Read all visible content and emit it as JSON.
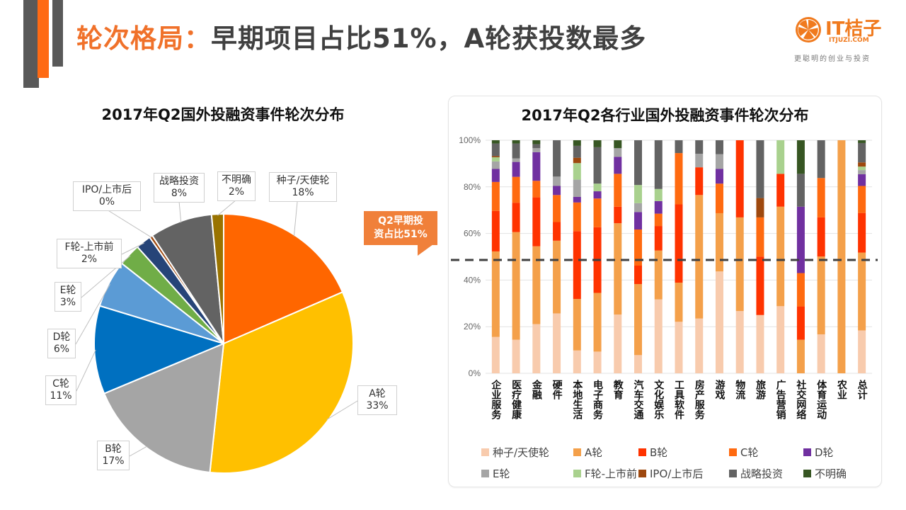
{
  "header": {
    "title_highlight": "轮次格局：",
    "title_rest": "早期项目占比51%，A轮获投数最多"
  },
  "logo": {
    "name": "IT桔子",
    "url_text": "ITJUZI.COM",
    "slogan": "更聪明的创业与投资",
    "brand_color": "#F07A1E"
  },
  "callout": {
    "line1": "Q2早期投",
    "line2": "资占比51%",
    "color": "#F0803A"
  },
  "chart_data": [
    {
      "type": "pie",
      "title": "2017年Q2国外投融资事件轮次分布",
      "slices": [
        {
          "label": "种子/天使轮",
          "value_label": "18%",
          "value": 18.5,
          "color": "#FF6600"
        },
        {
          "label": "A轮",
          "value_label": "33%",
          "value": 33.2,
          "color": "#FFC000"
        },
        {
          "label": "B轮",
          "value_label": "17%",
          "value": 17.0,
          "color": "#A5A5A5"
        },
        {
          "label": "C轮",
          "value_label": "11%",
          "value": 11.0,
          "color": "#0070C0"
        },
        {
          "label": "D轮",
          "value_label": "6%",
          "value": 5.9,
          "color": "#5B9BD5"
        },
        {
          "label": "E轮",
          "value_label": "3%",
          "value": 2.8,
          "color": "#70AD47"
        },
        {
          "label": "F轮-上市前",
          "value_label": "2%",
          "value": 1.9,
          "color": "#264478"
        },
        {
          "label": "IPO/上市后",
          "value_label": "0%",
          "value": 0.4,
          "color": "#9E480E"
        },
        {
          "label": "战略投资",
          "value_label": "8%",
          "value": 7.8,
          "color": "#636363"
        },
        {
          "label": "不明确",
          "value_label": "2%",
          "value": 1.5,
          "color": "#997300"
        }
      ],
      "start_angle": "12 o'clock",
      "direction": "clockwise"
    },
    {
      "type": "bar",
      "stacked": "percent",
      "title": "2017年Q2各行业国外投融资事件轮次分布",
      "categories": [
        "企业服务",
        "医疗健康",
        "金融",
        "硬件",
        "本地生活",
        "电子商务",
        "教育",
        "汽车交通",
        "文化娱乐",
        "工具软件",
        "房产服务",
        "游戏",
        "物流",
        "旅游",
        "广告营销",
        "社交网络",
        "体育运动",
        "农业",
        "总计"
      ],
      "yticks": [
        "0%",
        "20%",
        "40%",
        "60%",
        "80%",
        "100%"
      ],
      "ylim": [
        0,
        100
      ],
      "grid": true,
      "reference_line": {
        "value": 48.5,
        "style": "dashed",
        "note": "Q2早期投资占比51%"
      },
      "legend_position": "bottom",
      "series": [
        {
          "name": "种子/天使轮",
          "color": "#F8CBAD",
          "values": [
            15.6,
            14.4,
            21.1,
            25.7,
            9.8,
            9.3,
            25.2,
            7.8,
            31.7,
            22.1,
            23.5,
            43.7,
            26.7,
            25.0,
            28.8,
            0,
            16.7,
            0,
            18.4
          ]
        },
        {
          "name": "A轮",
          "color": "#F4A04A",
          "values": [
            36.7,
            46.2,
            33.4,
            31.2,
            22.1,
            25.2,
            39.2,
            30.5,
            21.0,
            16.8,
            53.0,
            25.0,
            40.2,
            0,
            42.7,
            14.4,
            33.4,
            100,
            33.4
          ]
        },
        {
          "name": "B轮",
          "color": "#FF3300",
          "values": [
            17.4,
            12.6,
            21.0,
            8.0,
            29.1,
            28.2,
            7.1,
            7.9,
            10.5,
            33.6,
            11.9,
            0,
            33.1,
            25.1,
            14.1,
            14.3,
            16.8,
            0,
            17.0
          ]
        },
        {
          "name": "C轮",
          "color": "#FF6A10",
          "values": [
            12.4,
            11.1,
            7.1,
            11.6,
            12.3,
            12.3,
            14.1,
            15.5,
            5.3,
            22.0,
            0,
            12.7,
            0,
            16.8,
            0,
            14.3,
            16.9,
            0,
            11.6
          ]
        },
        {
          "name": "D轮",
          "color": "#7030A0",
          "values": [
            5.6,
            6.4,
            12.3,
            3.9,
            2.4,
            3.1,
            7.3,
            7.5,
            5.4,
            0,
            0,
            6.3,
            0,
            0,
            0,
            28.5,
            0,
            0,
            5.0
          ]
        },
        {
          "name": "E轮",
          "color": "#A5A5A5",
          "values": [
            3.2,
            1.5,
            1.7,
            4.0,
            7.4,
            0,
            3.7,
            3.8,
            0,
            0,
            5.8,
            6.3,
            0,
            0,
            0,
            0,
            0,
            0,
            1.8
          ]
        },
        {
          "name": "F轮-上市前",
          "color": "#A9D18E",
          "values": [
            1.8,
            0,
            0,
            0,
            7.1,
            3.3,
            0,
            7.8,
            5.2,
            0,
            0,
            0,
            0,
            0,
            14.4,
            0,
            0,
            0,
            1.5
          ]
        },
        {
          "name": "IPO/上市后",
          "color": "#9E480E",
          "values": [
            0.5,
            0,
            0,
            0,
            2.3,
            0,
            0,
            0,
            0,
            0,
            0,
            0,
            0,
            8.3,
            0,
            0,
            0,
            0,
            1.8
          ]
        },
        {
          "name": "战略投资",
          "color": "#636363",
          "values": [
            5.4,
            6.4,
            1.7,
            15.6,
            5.1,
            15.6,
            0,
            19.2,
            20.9,
            5.5,
            5.8,
            6.0,
            0,
            24.8,
            0,
            14.1,
            16.2,
            0,
            8.3
          ]
        },
        {
          "name": "不明确",
          "color": "#375623",
          "values": [
            1.4,
            1.4,
            1.7,
            0,
            2.4,
            3.0,
            3.4,
            0,
            0,
            0,
            0,
            0,
            0,
            0,
            0,
            14.4,
            0,
            0,
            1.2
          ]
        }
      ]
    }
  ]
}
